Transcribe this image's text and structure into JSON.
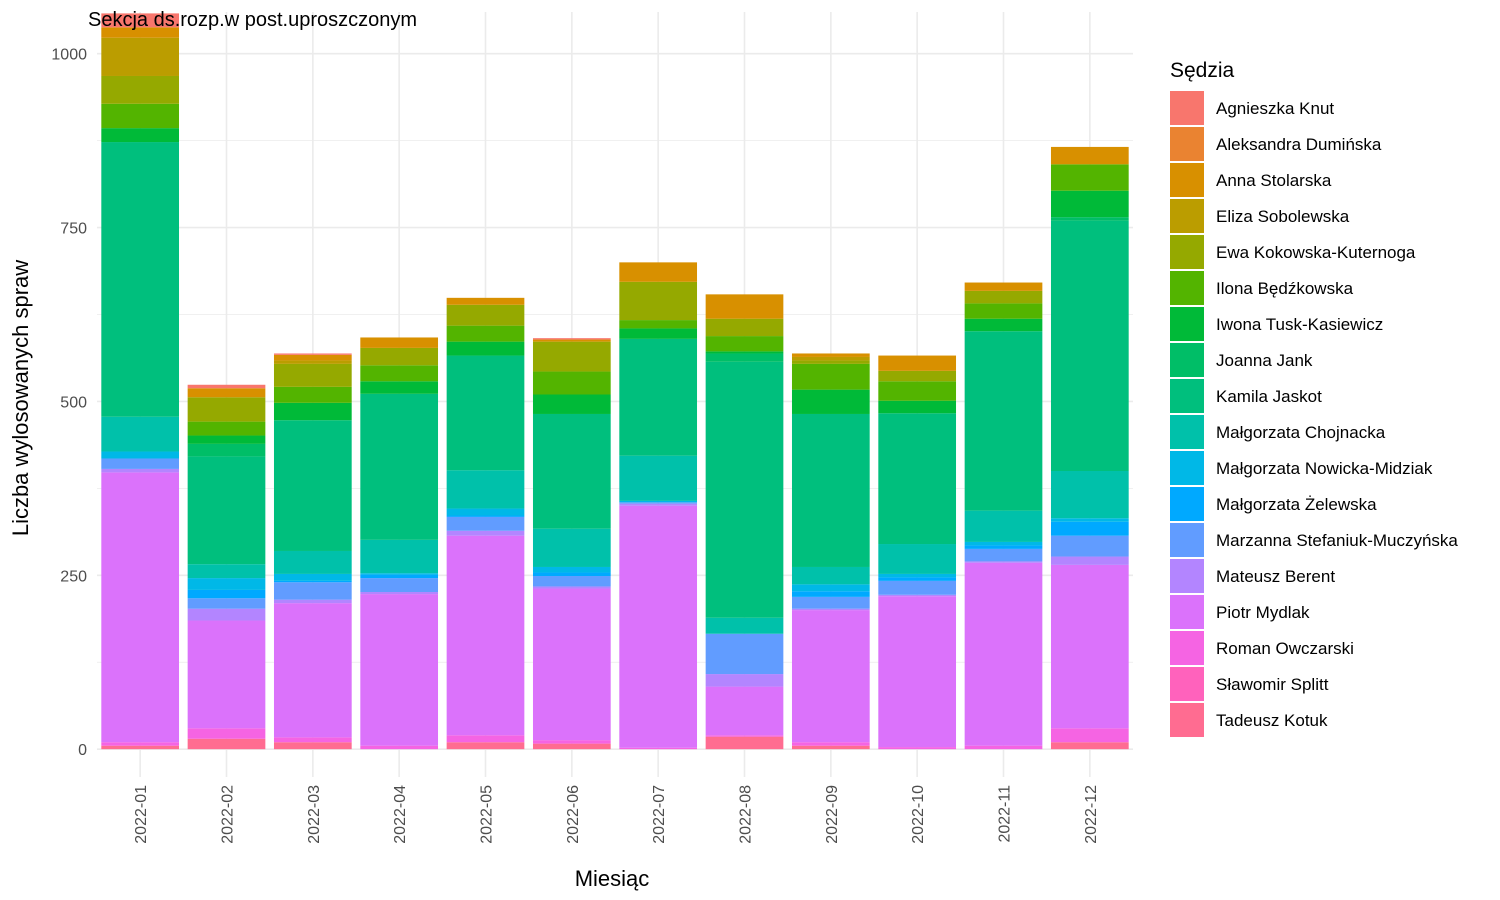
{
  "chart_data": {
    "type": "bar",
    "stacked": true,
    "title": "Sekcja ds.rozp.w post.uproszczonym",
    "xlabel": "Miesiąc",
    "ylabel": "Liczba wylosowanych spraw",
    "ylim": [
      -40,
      1060
    ],
    "yticks": [
      0,
      250,
      500,
      750,
      1000
    ],
    "grid": true,
    "legend_position": "right",
    "legend_title": "Sędzia",
    "categories": [
      "2022-01",
      "2022-02",
      "2022-03",
      "2022-04",
      "2022-05",
      "2022-06",
      "2022-07",
      "2022-08",
      "2022-09",
      "2022-10",
      "2022-11",
      "2022-12"
    ],
    "series": [
      {
        "name": "Tadeusz Kotuk",
        "color": "#FF6C91",
        "values": [
          5,
          15,
          10,
          0,
          10,
          8,
          0,
          18,
          5,
          0,
          0,
          10
        ]
      },
      {
        "name": "Sławomir Splitt",
        "color": "#FF62BC",
        "values": [
          0,
          0,
          0,
          0,
          0,
          0,
          0,
          0,
          0,
          0,
          0,
          0
        ]
      },
      {
        "name": "Roman Owczarski",
        "color": "#F564E3",
        "values": [
          5,
          15,
          7,
          5,
          10,
          5,
          2,
          2,
          5,
          3,
          5,
          20
        ]
      },
      {
        "name": "Piotr Mydlak",
        "color": "#DB72FB",
        "values": [
          388,
          155,
          193,
          218,
          287,
          218,
          348,
          70,
          190,
          217,
          263,
          235
        ]
      },
      {
        "name": "Mateusz Berent",
        "color": "#B385FF",
        "values": [
          5,
          17,
          5,
          3,
          7,
          3,
          3,
          18,
          2,
          2,
          2,
          12
        ]
      },
      {
        "name": "Marzanna Stefaniuk-Muczyńska",
        "color": "#619CFF",
        "values": [
          15,
          15,
          25,
          20,
          20,
          15,
          2,
          58,
          17,
          20,
          18,
          30
        ]
      },
      {
        "name": "Małgorzata Żelewska",
        "color": "#00A9FF",
        "values": [
          0,
          12,
          2,
          5,
          2,
          5,
          0,
          0,
          8,
          5,
          5,
          20
        ]
      },
      {
        "name": "Małgorzata Nowicka-Midziak",
        "color": "#00B8E7",
        "values": [
          10,
          17,
          10,
          2,
          10,
          8,
          2,
          0,
          10,
          5,
          5,
          5
        ]
      },
      {
        "name": "Małgorzata Chojnacka",
        "color": "#00C1AA",
        "values": [
          50,
          20,
          33,
          48,
          55,
          55,
          65,
          23,
          25,
          43,
          45,
          68
        ]
      },
      {
        "name": "Kamila Jaskot",
        "color": "#00BF7D",
        "values": [
          395,
          155,
          188,
          210,
          165,
          165,
          168,
          368,
          220,
          188,
          258,
          360
        ]
      },
      {
        "name": "Joanna Jank",
        "color": "#00BE67",
        "values": [
          0,
          18,
          0,
          0,
          0,
          0,
          0,
          12,
          0,
          0,
          0,
          5
        ]
      },
      {
        "name": "Iwona Tusk-Kasiewicz",
        "color": "#00BA38",
        "values": [
          20,
          12,
          25,
          18,
          20,
          28,
          15,
          3,
          35,
          18,
          18,
          38
        ]
      },
      {
        "name": "Ilona Będźkowska",
        "color": "#53B400",
        "values": [
          35,
          20,
          23,
          23,
          23,
          33,
          12,
          22,
          37,
          28,
          22,
          38
        ]
      },
      {
        "name": "Ewa Kokowska-Kuternoga",
        "color": "#95A900",
        "values": [
          40,
          35,
          33,
          25,
          30,
          43,
          55,
          25,
          5,
          15,
          18,
          0
        ]
      },
      {
        "name": "Eliza Sobolewska",
        "color": "#BB9D00",
        "values": [
          55,
          0,
          5,
          0,
          0,
          0,
          0,
          0,
          5,
          0,
          0,
          0
        ]
      },
      {
        "name": "Anna Stolarska",
        "color": "#D89000",
        "values": [
          15,
          13,
          8,
          15,
          10,
          3,
          28,
          35,
          5,
          22,
          12,
          25
        ]
      },
      {
        "name": "Aleksandra Dumińska",
        "color": "#EA8331",
        "values": [
          0,
          0,
          0,
          0,
          0,
          0,
          0,
          0,
          0,
          0,
          0,
          0
        ]
      },
      {
        "name": "Agnieszka Knut",
        "color": "#F8766D",
        "values": [
          20,
          5,
          2,
          0,
          0,
          2,
          0,
          0,
          0,
          0,
          0,
          0
        ]
      }
    ]
  }
}
